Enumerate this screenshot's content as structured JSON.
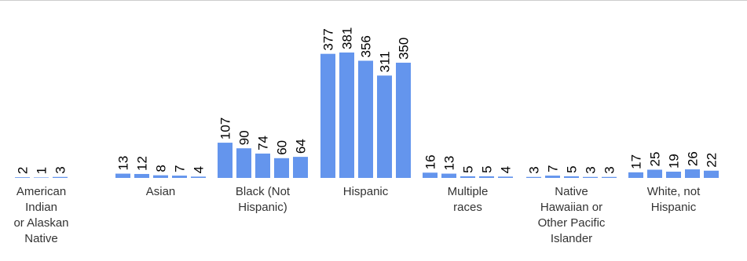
{
  "chart_data": {
    "type": "bar",
    "title": "",
    "xlabel": "",
    "ylabel": "",
    "ylim": [
      0,
      381
    ],
    "grid": false,
    "legend": "none",
    "bar_color": "#6495ed",
    "label_color": "#000000",
    "groups": [
      {
        "label_lines": [
          "American",
          "Indian",
          "or Alaskan",
          "Native"
        ],
        "values": [
          2,
          1,
          3
        ]
      },
      {
        "label_lines": [
          "Asian"
        ],
        "values": [
          13,
          12,
          8,
          7,
          4
        ]
      },
      {
        "label_lines": [
          "Black (Not",
          "Hispanic)"
        ],
        "values": [
          107,
          90,
          74,
          60,
          64
        ]
      },
      {
        "label_lines": [
          "Hispanic"
        ],
        "values": [
          377,
          381,
          356,
          311,
          350
        ]
      },
      {
        "label_lines": [
          "Multiple",
          "races"
        ],
        "values": [
          16,
          13,
          5,
          5,
          4
        ]
      },
      {
        "label_lines": [
          "Native",
          "Hawaiian or",
          "Other Pacific",
          "Islander"
        ],
        "values": [
          3,
          7,
          5,
          3,
          3
        ]
      },
      {
        "label_lines": [
          "White, not",
          "Hispanic"
        ],
        "values": [
          17,
          25,
          19,
          26,
          22
        ]
      }
    ]
  }
}
